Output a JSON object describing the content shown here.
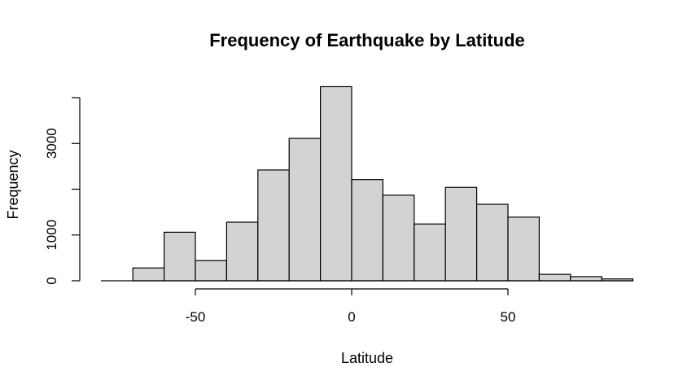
{
  "chart_data": {
    "type": "histogram",
    "title": "Frequency of Earthquake by Latitude",
    "xlabel": "Latitude",
    "ylabel": "Frequency",
    "bin_width": 10,
    "bins": [
      {
        "start": -70,
        "end": -60,
        "count": 280
      },
      {
        "start": -60,
        "end": -50,
        "count": 1060
      },
      {
        "start": -50,
        "end": -40,
        "count": 440
      },
      {
        "start": -40,
        "end": -30,
        "count": 1280
      },
      {
        "start": -30,
        "end": -20,
        "count": 2420
      },
      {
        "start": -20,
        "end": -10,
        "count": 3110
      },
      {
        "start": -10,
        "end": 0,
        "count": 4240
      },
      {
        "start": 0,
        "end": 10,
        "count": 2210
      },
      {
        "start": 10,
        "end": 20,
        "count": 1870
      },
      {
        "start": 20,
        "end": 30,
        "count": 1240
      },
      {
        "start": 30,
        "end": 40,
        "count": 2040
      },
      {
        "start": 40,
        "end": 50,
        "count": 1670
      },
      {
        "start": 50,
        "end": 60,
        "count": 1390
      },
      {
        "start": 60,
        "end": 70,
        "count": 140
      },
      {
        "start": 70,
        "end": 80,
        "count": 90
      },
      {
        "start": 80,
        "end": 90,
        "count": 40
      }
    ],
    "x_ticks": [
      -50,
      0,
      50
    ],
    "x_tick_labels": [
      "-50",
      "0",
      "50"
    ],
    "y_ticks": [
      0,
      1000,
      2000,
      3000,
      4000
    ],
    "y_tick_labels": [
      "0",
      "1000",
      "",
      "3000",
      ""
    ],
    "bar_fill": "#d3d3d3",
    "bar_stroke": "#000000"
  }
}
